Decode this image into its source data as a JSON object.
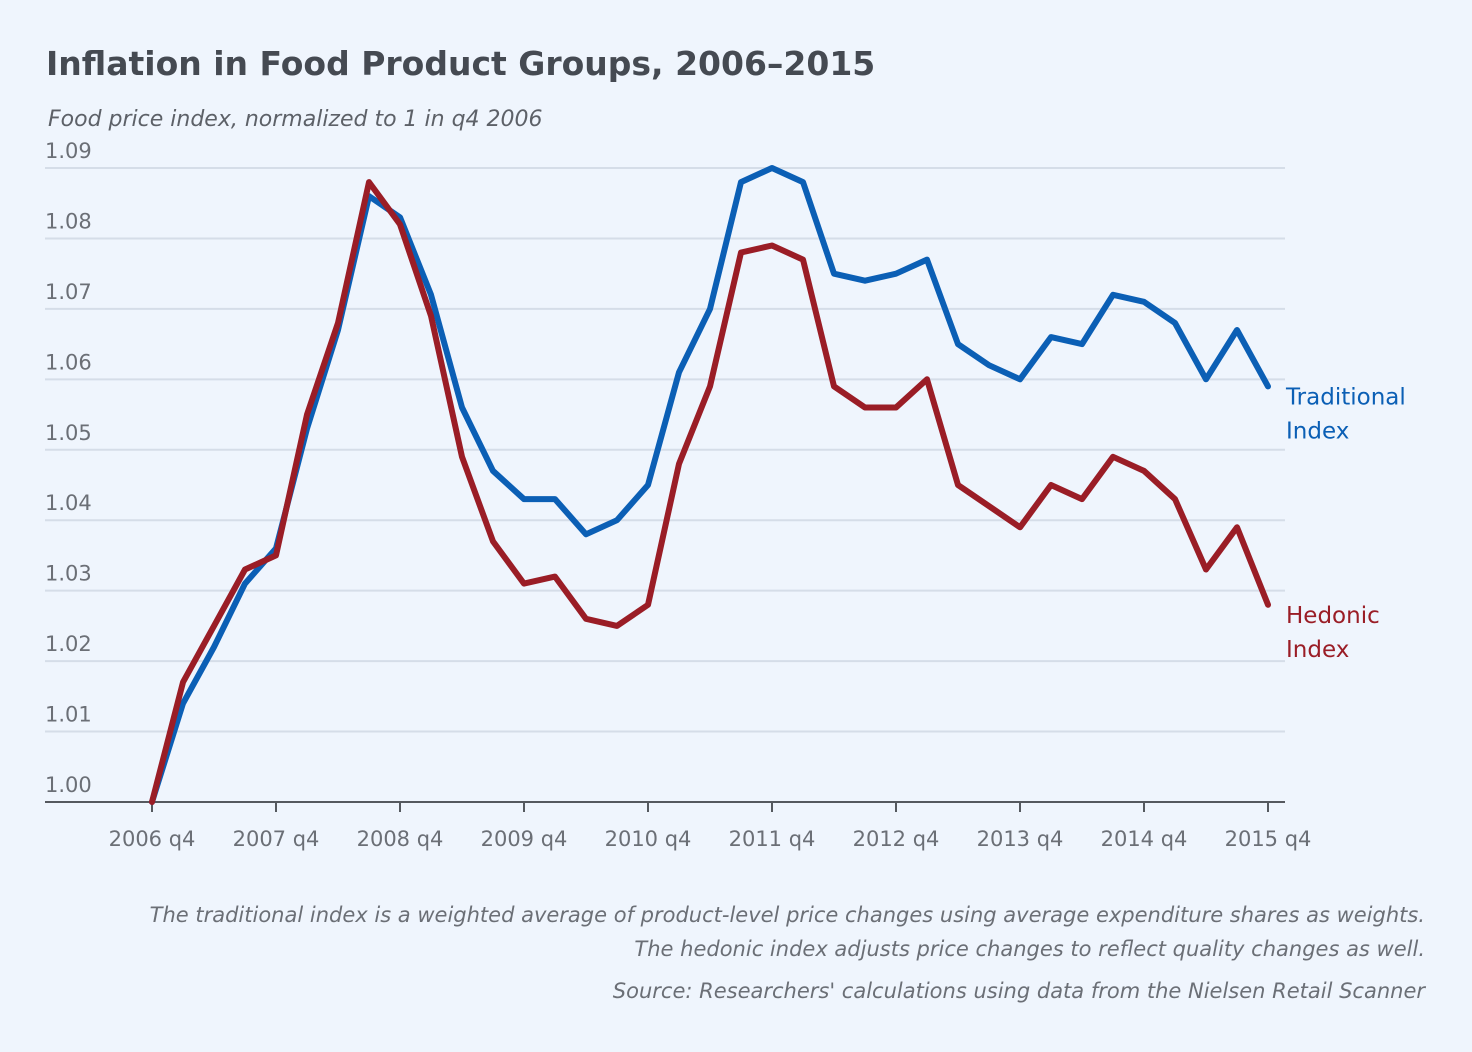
{
  "chart_data": {
    "type": "line",
    "title": "Inflation in Food Product Groups, 2006–2015",
    "subtitle": "Food price index, normalized to 1 in q4 2006",
    "xlabel": "",
    "ylabel": "",
    "ylim": [
      1.0,
      1.09
    ],
    "yticks": [
      "1.00",
      "1.01",
      "1.02",
      "1.03",
      "1.04",
      "1.05",
      "1.06",
      "1.07",
      "1.08",
      "1.09"
    ],
    "xtick_labels": [
      "2006 q4",
      "2007 q4",
      "2008 q4",
      "2009 q4",
      "2010 q4",
      "2011 q4",
      "2012 q4",
      "2013 q4",
      "2014 q4",
      "2015 q4"
    ],
    "x": [
      "2006 q4",
      "2007 q1",
      "2007 q2",
      "2007 q3",
      "2007 q4",
      "2008 q1",
      "2008 q2",
      "2008 q3",
      "2008 q4",
      "2009 q1",
      "2009 q2",
      "2009 q3",
      "2009 q4",
      "2010 q1",
      "2010 q2",
      "2010 q3",
      "2010 q4",
      "2011 q1",
      "2011 q2",
      "2011 q3",
      "2011 q4",
      "2012 q1",
      "2012 q2",
      "2012 q3",
      "2012 q4",
      "2013 q1",
      "2013 q2",
      "2013 q3",
      "2013 q4",
      "2014 q1",
      "2014 q2",
      "2014 q3",
      "2014 q4",
      "2015 q1",
      "2015 q2",
      "2015 q3",
      "2015 q4"
    ],
    "grid": true,
    "legend": "inline labels at line ends (right)",
    "series": [
      {
        "name": "Traditional Index",
        "label_lines": [
          "Traditional",
          "Index"
        ],
        "color": "#0b5fb5",
        "values": [
          1.0,
          1.014,
          1.022,
          1.031,
          1.036,
          1.053,
          1.067,
          1.086,
          1.083,
          1.072,
          1.056,
          1.047,
          1.043,
          1.043,
          1.038,
          1.04,
          1.045,
          1.061,
          1.07,
          1.088,
          1.09,
          1.088,
          1.075,
          1.074,
          1.075,
          1.077,
          1.065,
          1.062,
          1.06,
          1.066,
          1.065,
          1.072,
          1.071,
          1.068,
          1.06,
          1.067,
          1.059
        ]
      },
      {
        "name": "Hedonic Index",
        "label_lines": [
          "Hedonic",
          "Index"
        ],
        "color": "#9a1d26",
        "values": [
          1.0,
          1.017,
          1.025,
          1.033,
          1.035,
          1.055,
          1.068,
          1.088,
          1.082,
          1.069,
          1.049,
          1.037,
          1.031,
          1.032,
          1.026,
          1.025,
          1.028,
          1.048,
          1.059,
          1.078,
          1.079,
          1.077,
          1.059,
          1.056,
          1.056,
          1.06,
          1.045,
          1.042,
          1.039,
          1.045,
          1.043,
          1.049,
          1.047,
          1.043,
          1.033,
          1.039,
          1.028
        ]
      }
    ],
    "notes": [
      "The traditional index is a weighted average of product-level price changes using average expenditure shares as weights.",
      "The hedonic index adjusts price changes to reflect quality changes as well.",
      "Source: Researchers' calculations using data from the Nielsen Retail Scanner"
    ]
  }
}
